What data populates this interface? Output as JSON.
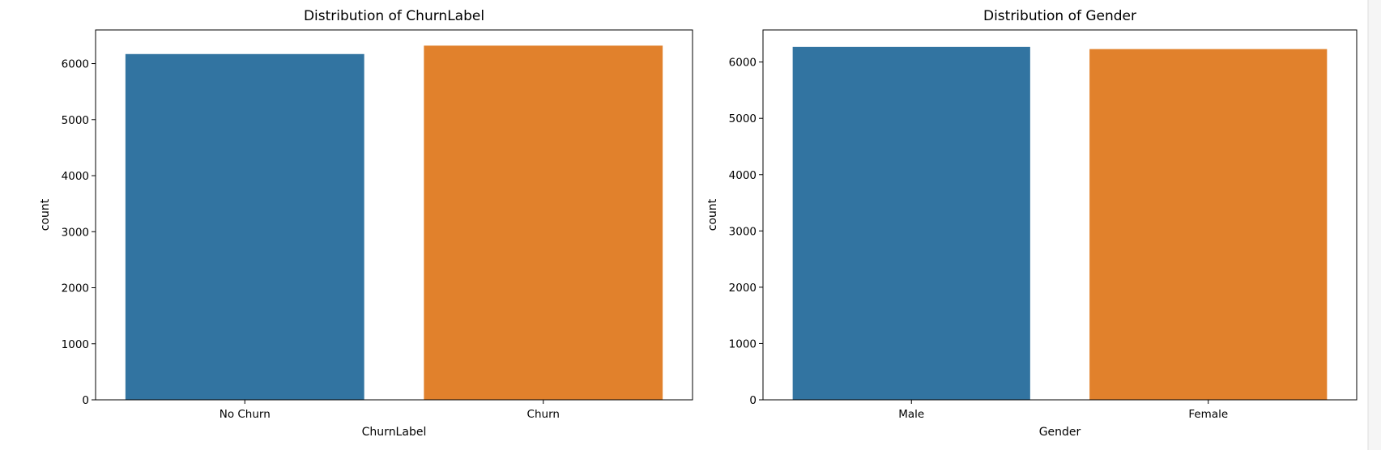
{
  "chart_data": [
    {
      "type": "bar",
      "title": "Distribution of ChurnLabel",
      "xlabel": "ChurnLabel",
      "ylabel": "count",
      "categories": [
        "No Churn",
        "Churn"
      ],
      "values": [
        6170,
        6320
      ],
      "colors": [
        "#3274a1",
        "#e1812c"
      ],
      "ylim": [
        0,
        6600
      ],
      "yticks": [
        0,
        1000,
        2000,
        3000,
        4000,
        5000,
        6000
      ],
      "grid": false
    },
    {
      "type": "bar",
      "title": "Distribution of Gender",
      "xlabel": "Gender",
      "ylabel": "count",
      "categories": [
        "Male",
        "Female"
      ],
      "values": [
        6270,
        6230
      ],
      "colors": [
        "#3274a1",
        "#e1812c"
      ],
      "ylim": [
        0,
        6570
      ],
      "yticks": [
        0,
        1000,
        2000,
        3000,
        4000,
        5000,
        6000
      ],
      "grid": false
    }
  ]
}
